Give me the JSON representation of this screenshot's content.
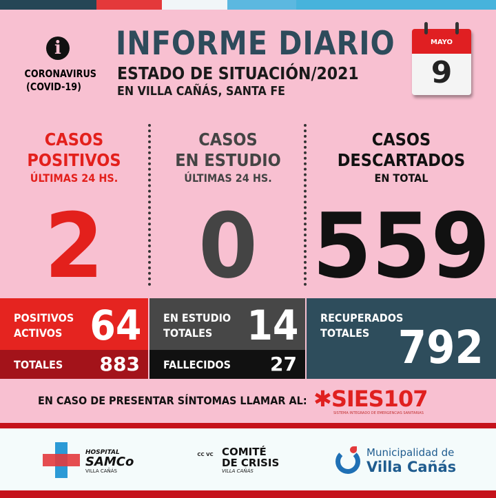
{
  "colors": {
    "background": "#f8c0d1",
    "red": "#e52420",
    "dark_red": "#a3131a",
    "slate": "#2e4d5c",
    "grey": "#474747"
  },
  "header": {
    "icon": "info-icon",
    "topic": "CORONAVIRUS",
    "topic_sub": "(COVID-19)",
    "title": "INFORME DIARIO",
    "subtitle": "ESTADO DE SITUACIÓN/2021",
    "location": "EN VILLA CAÑÁS, SANTA FE"
  },
  "calendar": {
    "month": "MAYO",
    "day": "9"
  },
  "stats": [
    {
      "line1": "CASOS",
      "line2": "POSITIVOS",
      "period": "ÚLTIMAS 24 HS.",
      "value": "2"
    },
    {
      "line1": "CASOS",
      "line2": "EN ESTUDIO",
      "period": "ÚLTIMAS 24 HS.",
      "value": "0"
    },
    {
      "line1": "CASOS",
      "line2": "DESCARTADOS",
      "period": "EN TOTAL",
      "value": "559"
    }
  ],
  "totals": {
    "positivos_activos": {
      "line1": "POSITIVOS",
      "line2": "ACTIVOS",
      "value": "64"
    },
    "totales": {
      "label": "TOTALES",
      "value": "883"
    },
    "en_estudio_totales": {
      "line1": "EN ESTUDIO",
      "line2": "TOTALES",
      "value": "14"
    },
    "fallecidos": {
      "label": "FALLECIDOS",
      "value": "27"
    },
    "recuperados": {
      "line1": "RECUPERADOS",
      "line2": "TOTALES",
      "value": "792"
    }
  },
  "contact": {
    "text": "EN CASO DE PRESENTAR SÍNTOMAS LLAMAR AL:",
    "logo": "SIES107",
    "logo_sub": "SISTEMA INTEGRADO DE EMERGENCIAS SANITARIAS"
  },
  "footer": {
    "hospital": {
      "line1": "HOSPITAL",
      "line2": "SAMCo",
      "line3": "VILLA CAÑÁS"
    },
    "comite": {
      "line1": "COMITÉ",
      "line2": "DE CRISIS",
      "line3": "VILLA CAÑÁS",
      "mark": "CC VC"
    },
    "municipalidad": {
      "line1": "Municipalidad de",
      "line2": "Villa Cañás"
    }
  }
}
